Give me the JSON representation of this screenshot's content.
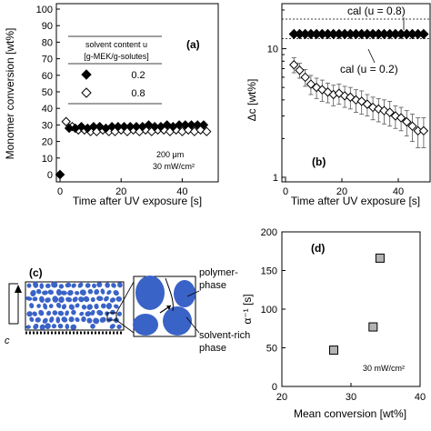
{
  "figure": {
    "panel_c": {
      "label": "(c)",
      "axis_label": "c",
      "polymer_phase_label": [
        "polymer-",
        "phase"
      ],
      "solvent_phase_label": [
        "solvent-rich",
        "phase"
      ]
    }
  },
  "chart_data": [
    {
      "type": "scatter",
      "panel": "(a)",
      "xlabel": "Time after UV exposure [s]",
      "ylabel": "Monomer conversion [wt%]",
      "xlim": [
        0,
        50
      ],
      "ylim": [
        0,
        100
      ],
      "xticks": [
        "0",
        "20",
        "40"
      ],
      "yticks": [
        "0",
        "10",
        "20",
        "30",
        "40",
        "50",
        "60",
        "70",
        "80",
        "90",
        "100"
      ],
      "legend": {
        "title_lines": [
          "solvent content u",
          "[g-MEK/g-solutes]"
        ],
        "entries": [
          {
            "marker": "filled-diamond",
            "label": "0.2"
          },
          {
            "marker": "open-diamond",
            "label": "0.8"
          }
        ]
      },
      "annotation": [
        "200 μm",
        "30 mW/cm²"
      ],
      "series": [
        {
          "name": "0.2",
          "marker": "filled-diamond",
          "x": [
            0,
            3,
            5,
            7,
            9,
            11,
            13,
            15,
            17,
            19,
            21,
            23,
            25,
            27,
            29,
            31,
            33,
            35,
            37,
            39,
            41,
            43,
            45,
            47
          ],
          "y": [
            0,
            28,
            28,
            29,
            28,
            29,
            29,
            28,
            29,
            29,
            29,
            29,
            29,
            29,
            30,
            29,
            29,
            30,
            29,
            30,
            30,
            30,
            30,
            30
          ]
        },
        {
          "name": "0.8",
          "marker": "open-diamond",
          "x": [
            0,
            2,
            4,
            6,
            8,
            10,
            12,
            14,
            16,
            18,
            20,
            22,
            24,
            26,
            28,
            30,
            32,
            34,
            36,
            38,
            40,
            42,
            44,
            46,
            48
          ],
          "y": [
            0,
            32,
            29,
            27,
            27,
            26,
            26,
            27,
            26,
            26,
            27,
            26,
            27,
            26,
            27,
            26,
            27,
            27,
            26,
            27,
            26,
            27,
            26,
            27,
            26
          ]
        }
      ]
    },
    {
      "type": "scatter",
      "panel": "(b)",
      "xlabel": "Time after UV exposure [s]",
      "ylabel": "Δc [wt%]",
      "yscale": "log",
      "xlim": [
        0,
        50
      ],
      "ylim": [
        1,
        20
      ],
      "xticks": [
        "0",
        "20",
        "40"
      ],
      "yticks": [
        "1",
        "10"
      ],
      "reference_lines": [
        {
          "label": "cal (u = 0.8)",
          "y": 17
        },
        {
          "label": "cal (u = 0.2)",
          "y": 12
        }
      ],
      "series": [
        {
          "name": "0.2",
          "marker": "filled-diamond",
          "x": [
            3,
            5,
            7,
            9,
            11,
            13,
            15,
            17,
            19,
            21,
            23,
            25,
            27,
            29,
            31,
            33,
            35,
            37,
            39,
            41,
            43,
            45,
            47,
            49
          ],
          "y": [
            13,
            13,
            13,
            13,
            13,
            13,
            13,
            13,
            13,
            13,
            13,
            13,
            13,
            13,
            13,
            13,
            13,
            13,
            13,
            13,
            13,
            13,
            13,
            13
          ]
        },
        {
          "name": "0.8",
          "marker": "open-diamond",
          "x": [
            3,
            5,
            7,
            9,
            11,
            13,
            15,
            17,
            19,
            21,
            23,
            25,
            27,
            29,
            31,
            33,
            35,
            37,
            39,
            41,
            43,
            45,
            47,
            49
          ],
          "y": [
            7.5,
            6.8,
            6.0,
            5.3,
            5.0,
            4.8,
            4.6,
            4.4,
            4.5,
            4.3,
            4.2,
            4.0,
            3.9,
            3.7,
            3.5,
            3.4,
            3.3,
            3.2,
            3.0,
            2.9,
            2.7,
            2.5,
            2.3,
            2.3
          ],
          "error": [
            1.0,
            0.9,
            0.9,
            0.9,
            0.9,
            0.9,
            0.8,
            0.8,
            0.8,
            0.8,
            0.8,
            0.8,
            0.8,
            0.7,
            0.7,
            0.7,
            0.7,
            0.7,
            0.6,
            0.6,
            0.6,
            0.6,
            0.6,
            0.6
          ]
        }
      ]
    },
    {
      "type": "scatter",
      "panel": "(d)",
      "xlabel": "Mean conversion [wt%]",
      "ylabel": "α⁻¹ [s]",
      "xlim": [
        20,
        40
      ],
      "ylim": [
        0,
        200
      ],
      "xticks": [
        "20",
        "30",
        "40"
      ],
      "yticks": [
        "0",
        "50",
        "100",
        "150",
        "200"
      ],
      "annotation": "30 mW/cm²",
      "series": [
        {
          "marker": "gray-square",
          "x": [
            27.5,
            33.2,
            34.2
          ],
          "y": [
            47,
            77,
            166
          ]
        }
      ]
    }
  ]
}
